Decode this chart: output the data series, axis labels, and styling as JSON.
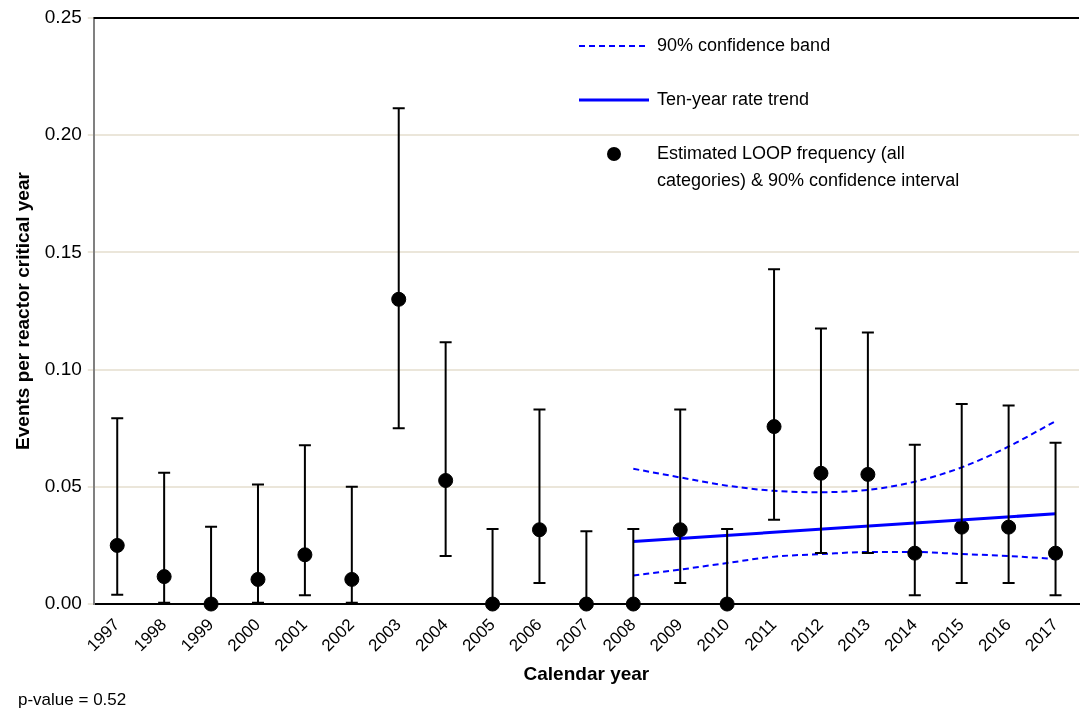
{
  "chart_data": {
    "type": "scatter",
    "xlabel": "Calendar year",
    "ylabel": "Events per reactor critical year",
    "categories": [
      "1997",
      "1998",
      "1999",
      "2000",
      "2001",
      "2002",
      "2003",
      "2004",
      "2005",
      "2006",
      "2007",
      "2008",
      "2009",
      "2010",
      "2011",
      "2012",
      "2013",
      "2014",
      "2015",
      "2016",
      "2017"
    ],
    "ylim": [
      0,
      0.25
    ],
    "yticks": [
      {
        "value": 0,
        "label": "0.00"
      },
      {
        "value": 0.05,
        "label": "0.05"
      },
      {
        "value": 0.1,
        "label": "0.10"
      },
      {
        "value": 0.15,
        "label": "0.15"
      },
      {
        "value": 0.2,
        "label": "0.20"
      },
      {
        "value": 0.25,
        "label": "0.25"
      }
    ],
    "grid": "y",
    "legend": "top right",
    "series": [
      {
        "name": "90% confidence band",
        "type": "line",
        "line_style": "dashed",
        "marker": "none",
        "color": "#0000ff",
        "values": [
          null,
          null,
          null,
          null,
          null,
          null,
          null,
          null,
          null,
          null,
          null,
          0.0577,
          0.054,
          0.0505,
          0.0483,
          0.0477,
          0.0487,
          0.0522,
          0.0583,
          0.0672,
          0.078
        ]
      },
      {
        "name": "Ten-year rate trend",
        "type": "line",
        "line_style": "solid",
        "marker": "none",
        "color": "#0000ff",
        "values": [
          null,
          null,
          null,
          null,
          null,
          null,
          null,
          null,
          null,
          null,
          null,
          0.0267,
          null,
          null,
          null,
          null,
          null,
          null,
          null,
          null,
          0.0385
        ]
      },
      {
        "name": "Estimated LOOP frequency (all categories) & 90% confidence interval",
        "marker": "circle",
        "color": "#000000",
        "values": [
          0.025,
          0.0117,
          0,
          0.0105,
          0.021,
          0.0105,
          0.13,
          0.0527,
          0,
          0.0317,
          0,
          0,
          0.0317,
          0,
          0.0757,
          0.0558,
          0.0553,
          0.0217,
          0.0328,
          0.0328,
          0.0217
        ],
        "errors": [
          [
            0.004,
            0.0793
          ],
          [
            0.0005,
            0.056
          ],
          [
            0,
            0.033
          ],
          [
            0.0005,
            0.051
          ],
          [
            0.0037,
            0.0677
          ],
          [
            0.0005,
            0.05
          ],
          [
            0.075,
            0.2115
          ],
          [
            0.0205,
            0.1117
          ],
          [
            0,
            0.032
          ],
          [
            0.009,
            0.083
          ],
          [
            0,
            0.031
          ],
          [
            0,
            0.032
          ],
          [
            0.009,
            0.083
          ],
          [
            0,
            0.032
          ],
          [
            0.036,
            0.1428
          ],
          [
            0.0218,
            0.1175
          ],
          [
            0.0218,
            0.1158
          ],
          [
            0.0038,
            0.068
          ],
          [
            0.009,
            0.0853
          ],
          [
            0.009,
            0.0847
          ],
          [
            0.0038,
            0.0688
          ]
        ]
      },
      {
        "type": "line",
        "line_style": "dashed",
        "marker": "none",
        "color": "#0000ff",
        "values": [
          null,
          null,
          null,
          null,
          null,
          null,
          null,
          null,
          null,
          null,
          null,
          0.0122,
          0.0147,
          0.0175,
          0.0202,
          0.0213,
          0.0222,
          0.0222,
          0.0213,
          0.0205,
          0.0192
        ]
      }
    ],
    "annotations": [
      "p-value = 0.52"
    ]
  }
}
